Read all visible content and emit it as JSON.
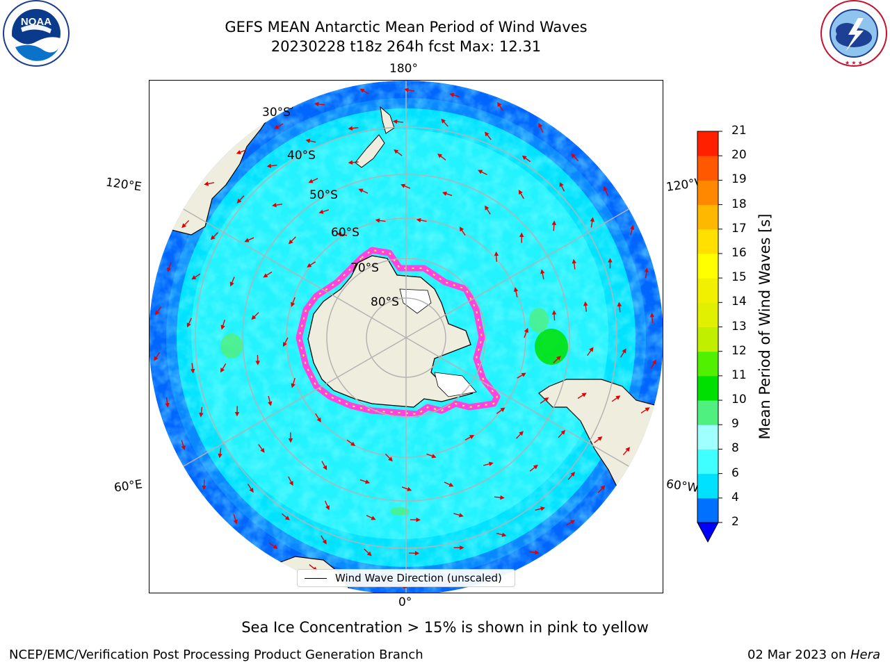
{
  "header": {
    "title_line1": "GEFS MEAN Antarctic Mean Period of Wind Waves",
    "title_line2": "20230228 t18z 264h fcst   Max: 12.31",
    "left_logo": {
      "name": "noaa-logo",
      "text": "NOAA",
      "ring_text": "NATIONAL OCEANIC AND ATMOSPHERIC ADMINISTRATION · U.S. DEPARTMENT OF COMMERCE"
    },
    "right_logo": {
      "name": "national-weather-service-logo",
      "ring_text": "NATIONAL WEATHER SERVICE"
    }
  },
  "map": {
    "projection": "south-polar-stereographic",
    "longitude_labels": {
      "top": "180°",
      "bottom": "0°",
      "left_upper": "120°E",
      "left_lower": "60°E",
      "right_upper": "120°W",
      "right_lower": "60°W"
    },
    "latitude_labels": [
      "30°S",
      "40°S",
      "50°S",
      "60°S",
      "70°S",
      "80°S"
    ],
    "legend_label": "Wind Wave Direction (unscaled)",
    "colors": {
      "land": "#efedde",
      "ice_free_shelf": "#ffffff",
      "arrow": "#e00000",
      "grid": "#b3b3b3",
      "sea_ice_edge": [
        "#ff44dd",
        "#ffbbff",
        "#ffee55"
      ]
    }
  },
  "colorbar": {
    "label": "Mean Period of Wind Waves [s]",
    "ticks": [
      "2",
      "4",
      "6",
      "8",
      "9",
      "10",
      "11",
      "12",
      "13",
      "14",
      "15",
      "16",
      "17",
      "18",
      "19",
      "20",
      "21"
    ],
    "levels": [
      2,
      4,
      6,
      8,
      9,
      10,
      11,
      12,
      13,
      14,
      15,
      16,
      17,
      18,
      19,
      20,
      21
    ],
    "colors": [
      "#0070ff",
      "#00e0ff",
      "#40ffff",
      "#a0ffff",
      "#50f080",
      "#00e000",
      "#50f000",
      "#c0f000",
      "#e0f000",
      "#f0f000",
      "#ffff00",
      "#ffe000",
      "#ffb800",
      "#ff8800",
      "#ff5800",
      "#ff2000",
      "#ff0000"
    ],
    "under_color": "#0000ff"
  },
  "caption": "Sea Ice Concentration > 15% is shown in pink to yellow",
  "footer": {
    "left": "NCEP/EMC/Verification Post Processing Product Generation Branch",
    "right_date": "02 Mar 2023 on ",
    "right_machine": "Hera"
  }
}
